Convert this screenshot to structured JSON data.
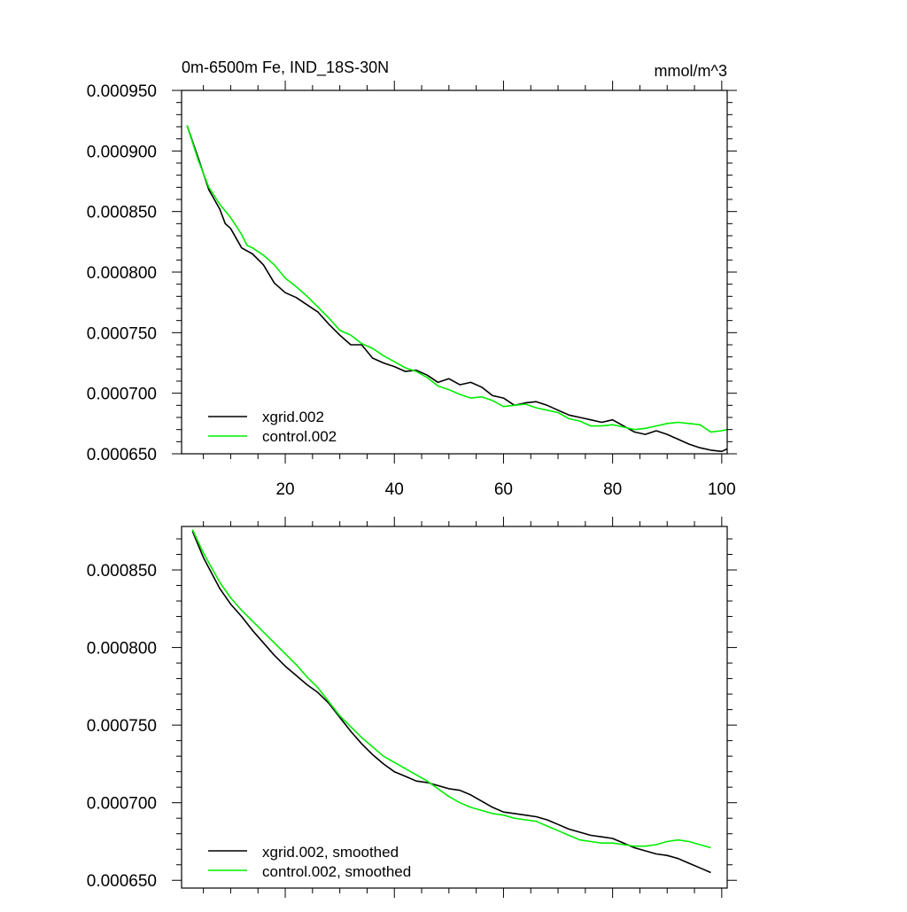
{
  "chart_data": [
    {
      "type": "line",
      "title": "0m-6500m Fe, IND_18S-30N",
      "units": "mmol/m^3",
      "xlim": [
        1,
        101
      ],
      "ylim": [
        0.00065,
        0.00095
      ],
      "xticks": [
        20,
        40,
        60,
        80,
        100
      ],
      "xtick_labels": [
        "20",
        "40",
        "60",
        "80",
        "100"
      ],
      "yticks": [
        0.00065,
        0.0007,
        0.00075,
        0.0008,
        0.00085,
        0.0009,
        0.00095
      ],
      "ytick_labels": [
        "0.000650",
        "0.000700",
        "0.000750",
        "0.000800",
        "0.000850",
        "0.000900",
        "0.000950"
      ],
      "legend_position": "bottom-left",
      "series": [
        {
          "name": "xgrid.002",
          "color": "#000000",
          "points": [
            [
              2,
              0.000921
            ],
            [
              4,
              0.000895
            ],
            [
              6,
              0.000868
            ],
            [
              8,
              0.000852
            ],
            [
              9,
              0.00084
            ],
            [
              10,
              0.000836
            ],
            [
              12,
              0.00082
            ],
            [
              14,
              0.000815
            ],
            [
              16,
              0.000806
            ],
            [
              18,
              0.000791
            ],
            [
              20,
              0.000783
            ],
            [
              22,
              0.000779
            ],
            [
              24,
              0.000773
            ],
            [
              26,
              0.000767
            ],
            [
              28,
              0.000757
            ],
            [
              30,
              0.000748
            ],
            [
              32,
              0.00074
            ],
            [
              34,
              0.00074
            ],
            [
              36,
              0.000729
            ],
            [
              38,
              0.000725
            ],
            [
              40,
              0.000722
            ],
            [
              42,
              0.000718
            ],
            [
              44,
              0.000719
            ],
            [
              46,
              0.000715
            ],
            [
              48,
              0.000709
            ],
            [
              50,
              0.000712
            ],
            [
              52,
              0.000707
            ],
            [
              54,
              0.000709
            ],
            [
              56,
              0.000705
            ],
            [
              58,
              0.000698
            ],
            [
              60,
              0.000696
            ],
            [
              62,
              0.00069
            ],
            [
              64,
              0.000692
            ],
            [
              66,
              0.000693
            ],
            [
              68,
              0.00069
            ],
            [
              70,
              0.000686
            ],
            [
              72,
              0.000682
            ],
            [
              74,
              0.00068
            ],
            [
              76,
              0.000678
            ],
            [
              78,
              0.000676
            ],
            [
              80,
              0.000678
            ],
            [
              82,
              0.000673
            ],
            [
              84,
              0.000668
            ],
            [
              86,
              0.000666
            ],
            [
              88,
              0.000669
            ],
            [
              90,
              0.000666
            ],
            [
              92,
              0.000662
            ],
            [
              94,
              0.000658
            ],
            [
              96,
              0.000655
            ],
            [
              98,
              0.000653
            ],
            [
              100,
              0.000652
            ],
            [
              101,
              0.000654
            ]
          ]
        },
        {
          "name": "control.002",
          "color": "#00ee00",
          "points": [
            [
              2,
              0.000921
            ],
            [
              4,
              0.000893
            ],
            [
              6,
              0.00087
            ],
            [
              8,
              0.000856
            ],
            [
              10,
              0.000845
            ],
            [
              12,
              0.000831
            ],
            [
              13,
              0.000822
            ],
            [
              14,
              0.00082
            ],
            [
              16,
              0.000814
            ],
            [
              18,
              0.000806
            ],
            [
              20,
              0.000795
            ],
            [
              22,
              0.000788
            ],
            [
              24,
              0.00078
            ],
            [
              26,
              0.000771
            ],
            [
              28,
              0.000762
            ],
            [
              30,
              0.000752
            ],
            [
              32,
              0.000748
            ],
            [
              34,
              0.000741
            ],
            [
              36,
              0.000737
            ],
            [
              38,
              0.000731
            ],
            [
              40,
              0.000726
            ],
            [
              42,
              0.000721
            ],
            [
              44,
              0.000718
            ],
            [
              46,
              0.000713
            ],
            [
              48,
              0.000706
            ],
            [
              50,
              0.000703
            ],
            [
              52,
              0.000699
            ],
            [
              54,
              0.000696
            ],
            [
              56,
              0.000697
            ],
            [
              58,
              0.000694
            ],
            [
              60,
              0.000689
            ],
            [
              62,
              0.00069
            ],
            [
              64,
              0.000691
            ],
            [
              66,
              0.000688
            ],
            [
              68,
              0.000686
            ],
            [
              70,
              0.000684
            ],
            [
              72,
              0.000679
            ],
            [
              74,
              0.000677
            ],
            [
              76,
              0.000673
            ],
            [
              78,
              0.000673
            ],
            [
              80,
              0.000674
            ],
            [
              82,
              0.000672
            ],
            [
              84,
              0.00067
            ],
            [
              86,
              0.000671
            ],
            [
              88,
              0.000673
            ],
            [
              90,
              0.000675
            ],
            [
              92,
              0.000676
            ],
            [
              94,
              0.000675
            ],
            [
              96,
              0.000674
            ],
            [
              98,
              0.000668
            ],
            [
              100,
              0.000669
            ],
            [
              101,
              0.00067
            ]
          ]
        }
      ]
    },
    {
      "type": "line",
      "xlim": [
        1,
        101
      ],
      "ylim": [
        0.000645,
        0.000878
      ],
      "xticks": [
        20,
        40,
        60,
        80,
        100
      ],
      "yticks": [
        0.00065,
        0.0007,
        0.00075,
        0.0008,
        0.00085
      ],
      "ytick_labels": [
        "0.000650",
        "0.000700",
        "0.000750",
        "0.000800",
        "0.000850"
      ],
      "legend_position": "bottom-left",
      "series": [
        {
          "name": "xgrid.002, smoothed",
          "color": "#000000",
          "points": [
            [
              3,
              0.000875
            ],
            [
              5,
              0.000858
            ],
            [
              8,
              0.000838
            ],
            [
              10,
              0.000828
            ],
            [
              12,
              0.00082
            ],
            [
              14,
              0.000811
            ],
            [
              16,
              0.000803
            ],
            [
              18,
              0.000795
            ],
            [
              20,
              0.000788
            ],
            [
              22,
              0.000782
            ],
            [
              24,
              0.000776
            ],
            [
              26,
              0.000771
            ],
            [
              28,
              0.000764
            ],
            [
              30,
              0.000755
            ],
            [
              32,
              0.000746
            ],
            [
              34,
              0.000738
            ],
            [
              36,
              0.000731
            ],
            [
              38,
              0.000725
            ],
            [
              40,
              0.00072
            ],
            [
              42,
              0.000717
            ],
            [
              44,
              0.000714
            ],
            [
              46,
              0.000713
            ],
            [
              48,
              0.000711
            ],
            [
              50,
              0.000709
            ],
            [
              52,
              0.000708
            ],
            [
              54,
              0.000705
            ],
            [
              56,
              0.000701
            ],
            [
              58,
              0.000697
            ],
            [
              60,
              0.000694
            ],
            [
              62,
              0.000693
            ],
            [
              64,
              0.000692
            ],
            [
              66,
              0.000691
            ],
            [
              68,
              0.000689
            ],
            [
              70,
              0.000686
            ],
            [
              72,
              0.000683
            ],
            [
              74,
              0.000681
            ],
            [
              76,
              0.000679
            ],
            [
              78,
              0.000678
            ],
            [
              80,
              0.000677
            ],
            [
              82,
              0.000674
            ],
            [
              84,
              0.000671
            ],
            [
              86,
              0.000669
            ],
            [
              88,
              0.000667
            ],
            [
              90,
              0.000666
            ],
            [
              92,
              0.000664
            ],
            [
              94,
              0.000661
            ],
            [
              96,
              0.000658
            ],
            [
              98,
              0.000655
            ]
          ]
        },
        {
          "name": "control.002, smoothed",
          "color": "#00ee00",
          "points": [
            [
              3,
              0.000876
            ],
            [
              5,
              0.000861
            ],
            [
              8,
              0.000842
            ],
            [
              10,
              0.000832
            ],
            [
              12,
              0.000824
            ],
            [
              14,
              0.000817
            ],
            [
              16,
              0.00081
            ],
            [
              18,
              0.000803
            ],
            [
              20,
              0.000796
            ],
            [
              22,
              0.000789
            ],
            [
              24,
              0.000781
            ],
            [
              26,
              0.000774
            ],
            [
              28,
              0.000765
            ],
            [
              30,
              0.000756
            ],
            [
              32,
              0.000749
            ],
            [
              34,
              0.000742
            ],
            [
              36,
              0.000736
            ],
            [
              38,
              0.00073
            ],
            [
              40,
              0.000726
            ],
            [
              42,
              0.000722
            ],
            [
              44,
              0.000718
            ],
            [
              46,
              0.000714
            ],
            [
              48,
              0.000709
            ],
            [
              50,
              0.000704
            ],
            [
              52,
              0.0007
            ],
            [
              54,
              0.000697
            ],
            [
              56,
              0.000695
            ],
            [
              58,
              0.000693
            ],
            [
              60,
              0.000692
            ],
            [
              62,
              0.00069
            ],
            [
              64,
              0.000689
            ],
            [
              66,
              0.000688
            ],
            [
              68,
              0.000685
            ],
            [
              70,
              0.000682
            ],
            [
              72,
              0.000679
            ],
            [
              74,
              0.000676
            ],
            [
              76,
              0.000675
            ],
            [
              78,
              0.000674
            ],
            [
              80,
              0.000674
            ],
            [
              82,
              0.000673
            ],
            [
              84,
              0.000672
            ],
            [
              86,
              0.000672
            ],
            [
              88,
              0.000673
            ],
            [
              90,
              0.000675
            ],
            [
              92,
              0.000676
            ],
            [
              94,
              0.000675
            ],
            [
              96,
              0.000673
            ],
            [
              98,
              0.000671
            ]
          ]
        }
      ]
    }
  ]
}
